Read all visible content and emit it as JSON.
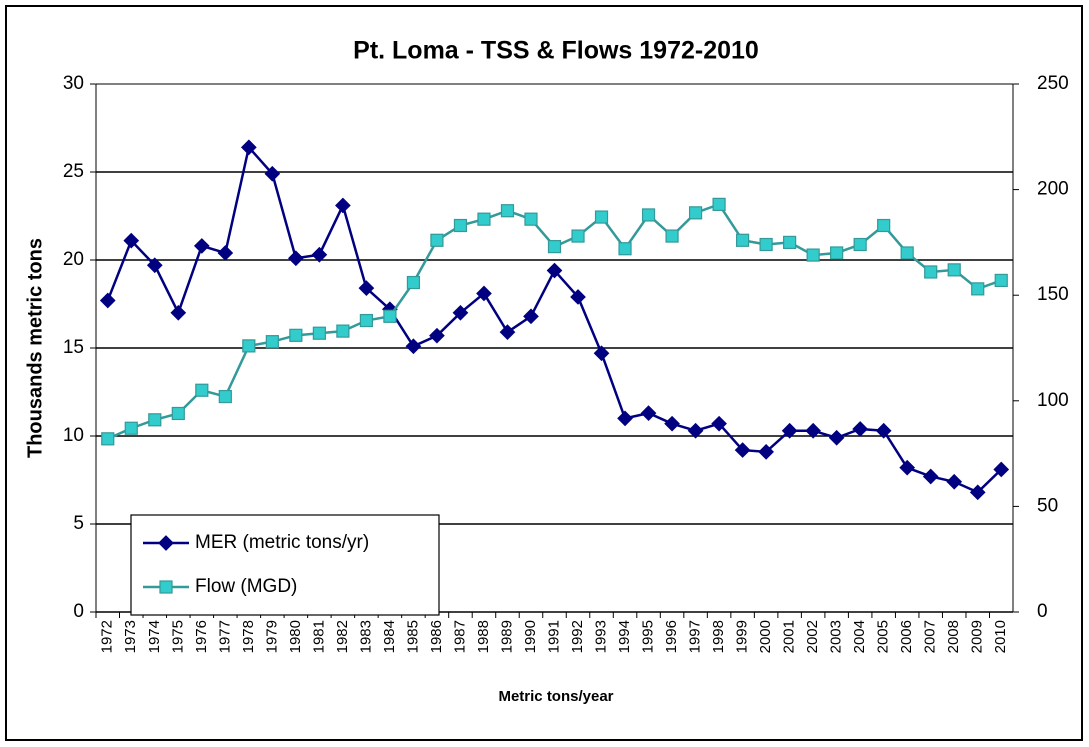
{
  "chart_data": {
    "type": "line",
    "title": "Pt. Loma - TSS & Flows 1972-2010",
    "y_label": "Thousands metric tons",
    "x_label": "Metric tons/year",
    "categories": [
      "1972",
      "1973",
      "1974",
      "1975",
      "1976",
      "1977",
      "1978",
      "1979",
      "1980",
      "1981",
      "1982",
      "1983",
      "1984",
      "1985",
      "1986",
      "1987",
      "1988",
      "1989",
      "1990",
      "1991",
      "1992",
      "1993",
      "1994",
      "1995",
      "1996",
      "1997",
      "1998",
      "1999",
      "2000",
      "2001",
      "2002",
      "2003",
      "2004",
      "2005",
      "2006",
      "2007",
      "2008",
      "2009",
      "2010"
    ],
    "series": [
      {
        "name": "MER (metric tons/yr)",
        "color": "#000080",
        "marker": "diamond",
        "values": [
          17.7,
          21.1,
          19.7,
          17.0,
          20.8,
          20.4,
          26.4,
          24.9,
          20.1,
          20.3,
          23.1,
          18.4,
          17.2,
          15.1,
          15.7,
          17.0,
          18.1,
          15.9,
          16.8,
          19.4,
          17.9,
          14.7,
          11.0,
          11.3,
          10.7,
          10.3,
          10.7,
          9.2,
          9.1,
          10.3,
          10.3,
          9.9,
          10.4,
          10.3,
          8.2,
          7.7,
          7.4,
          6.8,
          8.1
        ]
      },
      {
        "name": "Flow (MGD)",
        "color": "#339999",
        "marker_color": "#33cccc",
        "marker": "square",
        "axis": "y2",
        "values": [
          82,
          87,
          91,
          94,
          105,
          102,
          126,
          128,
          131,
          132,
          133,
          138,
          140,
          156,
          176,
          183,
          186,
          190,
          186,
          173,
          178,
          187,
          172,
          188,
          178,
          189,
          193,
          176,
          174,
          175,
          169,
          170,
          174,
          183,
          170,
          161,
          162,
          153,
          157
        ]
      }
    ],
    "ylim": [
      0,
      30
    ],
    "yticks": [
      0,
      5,
      10,
      15,
      20,
      25,
      30
    ],
    "y2lim": [
      0,
      250
    ],
    "y2ticks": [
      0,
      50,
      100,
      150,
      200,
      250
    ],
    "grid": true,
    "legend": "lower left"
  }
}
